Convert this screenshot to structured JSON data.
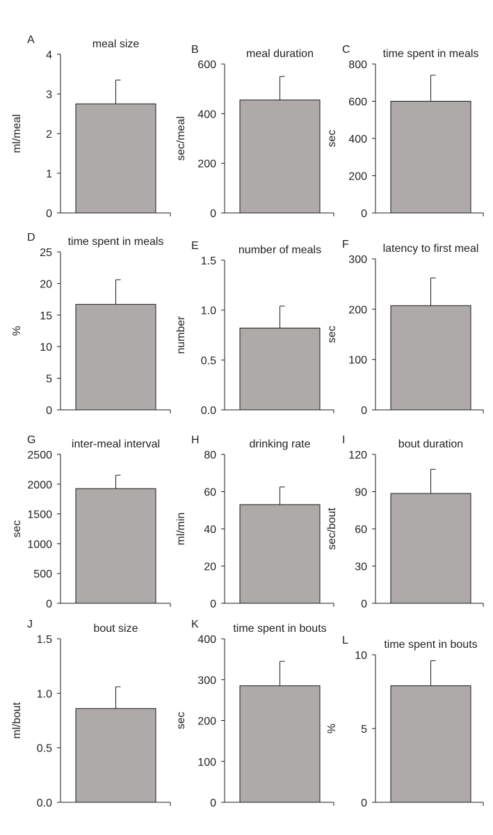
{
  "colors": {
    "bar": "#aeaaa9",
    "stroke": "#1a1a1a",
    "text": "#222222"
  },
  "chart_data": [
    {
      "type": "bar",
      "panel": "A",
      "title": "meal size",
      "ylabel": "ml/meal",
      "xlabel": "",
      "categories": [
        ""
      ],
      "values": [
        2.75
      ],
      "errors": [
        0.6
      ],
      "ylim": [
        0,
        4
      ],
      "ticks": [
        0,
        1,
        2,
        3,
        4
      ],
      "tick_labels": [
        "0",
        "1",
        "2",
        "3",
        "4"
      ]
    },
    {
      "type": "bar",
      "panel": "B",
      "title": "meal duration",
      "ylabel": "sec/meal",
      "xlabel": "",
      "categories": [
        ""
      ],
      "values": [
        455
      ],
      "errors": [
        95
      ],
      "ylim": [
        0,
        600
      ],
      "ticks": [
        0,
        200,
        400,
        600
      ],
      "tick_labels": [
        "0",
        "200",
        "400",
        "600"
      ]
    },
    {
      "type": "bar",
      "panel": "C",
      "title": "time spent in meals",
      "ylabel": "sec",
      "xlabel": "",
      "categories": [
        ""
      ],
      "values": [
        600
      ],
      "errors": [
        140
      ],
      "ylim": [
        0,
        800
      ],
      "ticks": [
        0,
        200,
        400,
        600,
        800
      ],
      "tick_labels": [
        "0",
        "200",
        "400",
        "600",
        "800"
      ]
    },
    {
      "type": "bar",
      "panel": "D",
      "title": "time spent in meals",
      "ylabel": "%",
      "xlabel": "",
      "categories": [
        ""
      ],
      "values": [
        16.7
      ],
      "errors": [
        3.9
      ],
      "ylim": [
        0,
        25
      ],
      "ticks": [
        0,
        5,
        10,
        15,
        20,
        25
      ],
      "tick_labels": [
        "0",
        "5",
        "10",
        "15",
        "20",
        "25"
      ]
    },
    {
      "type": "bar",
      "panel": "E",
      "title": "number of meals",
      "ylabel": "number",
      "xlabel": "",
      "categories": [
        ""
      ],
      "values": [
        0.82
      ],
      "errors": [
        0.22
      ],
      "ylim": [
        0,
        1.5
      ],
      "ticks": [
        0,
        0.5,
        1.0,
        1.5
      ],
      "tick_labels": [
        "0.0",
        "0.5",
        "1.0",
        "1.5"
      ]
    },
    {
      "type": "bar",
      "panel": "F",
      "title": "latency to first meal",
      "ylabel": "sec",
      "xlabel": "",
      "categories": [
        ""
      ],
      "values": [
        207
      ],
      "errors": [
        55
      ],
      "ylim": [
        0,
        300
      ],
      "ticks": [
        0,
        100,
        200,
        300
      ],
      "tick_labels": [
        "0",
        "100",
        "200",
        "300"
      ]
    },
    {
      "type": "bar",
      "panel": "G",
      "title": "inter-meal interval",
      "ylabel": "sec",
      "xlabel": "",
      "categories": [
        ""
      ],
      "values": [
        1925
      ],
      "errors": [
        225
      ],
      "ylim": [
        0,
        2500
      ],
      "ticks": [
        0,
        500,
        1000,
        1500,
        2000,
        2500
      ],
      "tick_labels": [
        "0",
        "500",
        "1000",
        "1500",
        "2000",
        "2500"
      ]
    },
    {
      "type": "bar",
      "panel": "H",
      "title": "drinking rate",
      "ylabel": "ml/min",
      "xlabel": "",
      "categories": [
        ""
      ],
      "values": [
        53
      ],
      "errors": [
        9.5
      ],
      "ylim": [
        0,
        80
      ],
      "ticks": [
        0,
        20,
        40,
        60,
        80
      ],
      "tick_labels": [
        "0",
        "20",
        "40",
        "60",
        "80"
      ]
    },
    {
      "type": "bar",
      "panel": "I",
      "title": "bout duration",
      "ylabel": "sec/bout",
      "xlabel": "",
      "categories": [
        ""
      ],
      "values": [
        88.5
      ],
      "errors": [
        19.5
      ],
      "ylim": [
        0,
        120
      ],
      "ticks": [
        0,
        30,
        60,
        90,
        120
      ],
      "tick_labels": [
        "0",
        "30",
        "60",
        "90",
        "120"
      ]
    },
    {
      "type": "bar",
      "panel": "J",
      "title": "bout size",
      "ylabel": "ml/bout",
      "xlabel": "",
      "categories": [
        ""
      ],
      "values": [
        0.86
      ],
      "errors": [
        0.2
      ],
      "ylim": [
        0,
        1.5
      ],
      "ticks": [
        0,
        0.5,
        1.0,
        1.5
      ],
      "tick_labels": [
        "0.0",
        "0.5",
        "1.0",
        "1.5"
      ]
    },
    {
      "type": "bar",
      "panel": "K",
      "title": "time spent in bouts",
      "ylabel": "sec",
      "xlabel": "",
      "categories": [
        ""
      ],
      "values": [
        285
      ],
      "errors": [
        60
      ],
      "ylim": [
        0,
        400
      ],
      "ticks": [
        0,
        100,
        200,
        300,
        400
      ],
      "tick_labels": [
        "0",
        "100",
        "200",
        "300",
        "400"
      ]
    },
    {
      "type": "bar",
      "panel": "L",
      "title": "time spent in bouts",
      "ylabel": "%",
      "xlabel": "",
      "categories": [
        ""
      ],
      "values": [
        7.9
      ],
      "errors": [
        1.7
      ],
      "ylim": [
        0,
        10
      ],
      "ticks": [
        0,
        5,
        10
      ],
      "tick_labels": [
        "0",
        "5",
        "10"
      ]
    }
  ]
}
